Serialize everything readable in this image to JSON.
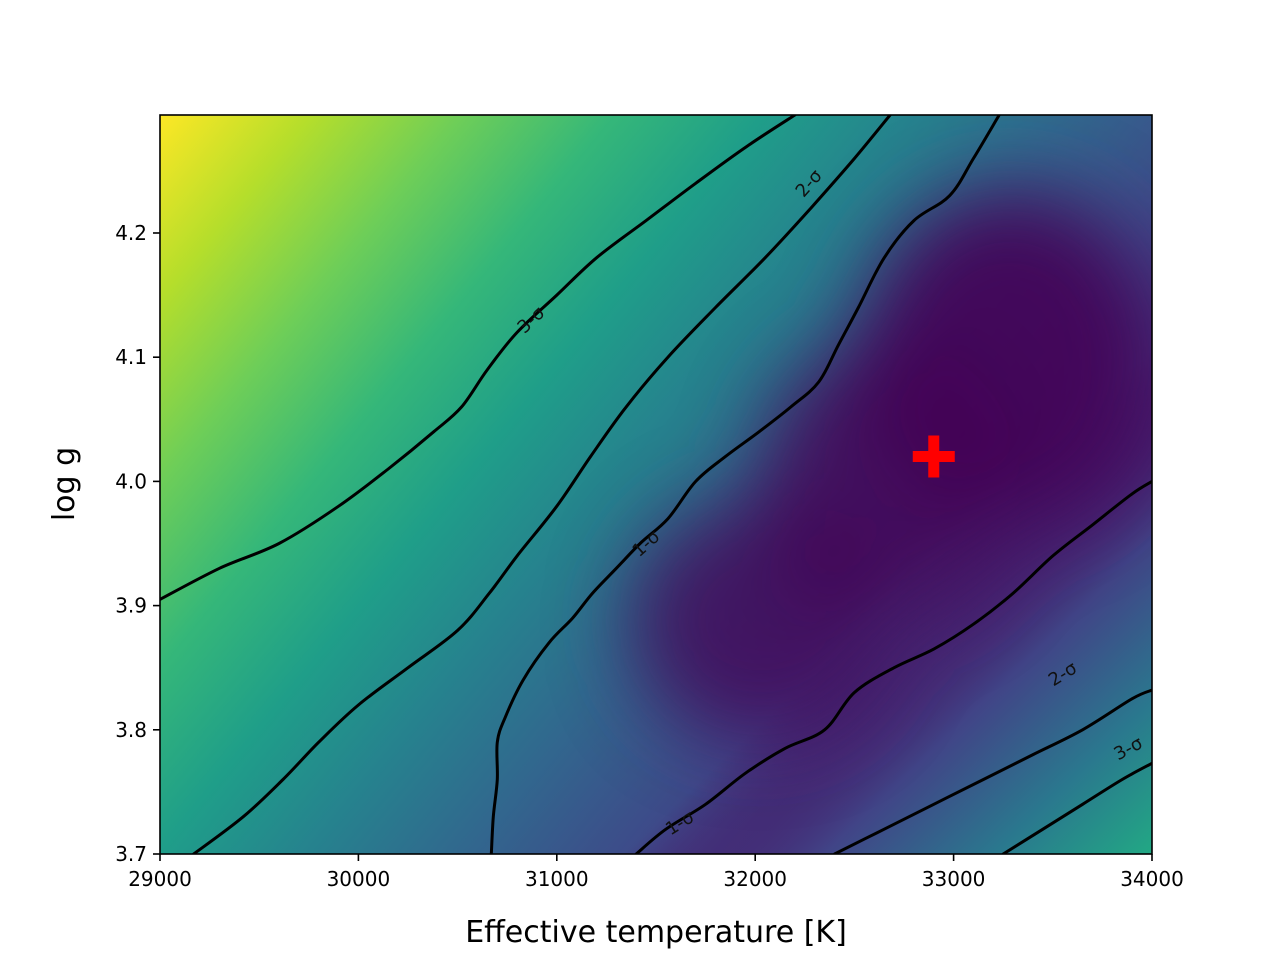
{
  "chart_data": {
    "type": "heatmap",
    "title": "",
    "xlabel": "Effective temperature [K]",
    "ylabel": "log g",
    "xlim": [
      29000,
      34000
    ],
    "ylim": [
      3.7,
      4.295
    ],
    "x_ticks": [
      29000,
      30000,
      31000,
      32000,
      33000,
      34000
    ],
    "y_ticks": [
      3.7,
      3.8,
      3.9,
      4.0,
      4.1,
      4.2
    ],
    "x_tick_labels": [
      "29000",
      "30000",
      "31000",
      "32000",
      "33000",
      "34000"
    ],
    "y_tick_labels": [
      "3.7",
      "3.8",
      "3.9",
      "4.0",
      "4.1",
      "4.2"
    ],
    "colormap": "viridis",
    "grid": false,
    "best_fit": {
      "teff": 32900,
      "logg": 4.02,
      "marker": "plus",
      "color": "#ff0000"
    },
    "minimum_valley": {
      "center": [
        33200,
        4.08
      ],
      "secondary": [
        31900,
        3.86
      ]
    },
    "contours": [
      {
        "level": "1-σ",
        "branches": [
          [
            [
              30670,
              3.7
            ],
            [
              30680,
              3.73
            ],
            [
              30700,
              3.76
            ],
            [
              30700,
              3.79
            ],
            [
              30740,
              3.81
            ],
            [
              30830,
              3.84
            ],
            [
              30960,
              3.87
            ],
            [
              31080,
              3.89
            ],
            [
              31180,
              3.91
            ],
            [
              31300,
              3.93
            ],
            [
              31420,
              3.95
            ],
            [
              31560,
              3.97
            ],
            [
              31700,
              4.0
            ],
            [
              31850,
              4.02
            ],
            [
              32020,
              4.04
            ],
            [
              32180,
              4.06
            ],
            [
              32320,
              4.08
            ],
            [
              32420,
              4.11
            ],
            [
              32520,
              4.14
            ],
            [
              32650,
              4.18
            ],
            [
              32800,
              4.21
            ],
            [
              32980,
              4.23
            ],
            [
              33100,
              4.26
            ],
            [
              33230,
              4.295
            ]
          ],
          [
            [
              31400,
              3.7
            ],
            [
              31550,
              3.72
            ],
            [
              31750,
              3.74
            ],
            [
              31950,
              3.765
            ],
            [
              32150,
              3.785
            ],
            [
              32350,
              3.8
            ],
            [
              32500,
              3.83
            ],
            [
              32700,
              3.85
            ],
            [
              32900,
              3.865
            ],
            [
              33100,
              3.885
            ],
            [
              33300,
              3.91
            ],
            [
              33500,
              3.94
            ],
            [
              33700,
              3.965
            ],
            [
              33900,
              3.99
            ],
            [
              34000,
              4.0
            ]
          ]
        ],
        "labels": [
          [
            31450,
            3.95
          ],
          [
            31620,
            3.725
          ]
        ]
      },
      {
        "level": "2-σ",
        "branches": [
          [
            [
              29170,
              3.7
            ],
            [
              29420,
              3.73
            ],
            [
              29620,
              3.76
            ],
            [
              29800,
              3.79
            ],
            [
              30000,
              3.82
            ],
            [
              30250,
              3.85
            ],
            [
              30500,
              3.88
            ],
            [
              30660,
              3.91
            ],
            [
              30800,
              3.94
            ],
            [
              31000,
              3.98
            ],
            [
              31170,
              4.02
            ],
            [
              31350,
              4.06
            ],
            [
              31560,
              4.1
            ],
            [
              31800,
              4.14
            ],
            [
              32050,
              4.18
            ],
            [
              32280,
              4.22
            ],
            [
              32500,
              4.26
            ],
            [
              32680,
              4.295
            ]
          ],
          [
            [
              32400,
              3.7
            ],
            [
              32650,
              3.72
            ],
            [
              32900,
              3.74
            ],
            [
              33150,
              3.76
            ],
            [
              33400,
              3.78
            ],
            [
              33650,
              3.8
            ],
            [
              33900,
              3.825
            ],
            [
              34000,
              3.832
            ]
          ]
        ],
        "labels": [
          [
            32270,
            4.24
          ],
          [
            33550,
            3.845
          ]
        ]
      },
      {
        "level": "3-σ",
        "branches": [
          [
            [
              29000,
              3.905
            ],
            [
              29300,
              3.93
            ],
            [
              29600,
              3.95
            ],
            [
              29900,
              3.98
            ],
            [
              30150,
              4.01
            ],
            [
              30380,
              4.04
            ],
            [
              30520,
              4.06
            ],
            [
              30650,
              4.09
            ],
            [
              30800,
              4.12
            ],
            [
              31000,
              4.15
            ],
            [
              31200,
              4.18
            ],
            [
              31450,
              4.21
            ],
            [
              31700,
              4.24
            ],
            [
              31960,
              4.27
            ],
            [
              32200,
              4.295
            ]
          ],
          [
            [
              33250,
              3.7
            ],
            [
              33450,
              3.72
            ],
            [
              33650,
              3.74
            ],
            [
              33850,
              3.76
            ],
            [
              34000,
              3.773
            ]
          ]
        ],
        "labels": [
          [
            30870,
            4.13
          ],
          [
            33880,
            3.785
          ]
        ]
      }
    ]
  }
}
